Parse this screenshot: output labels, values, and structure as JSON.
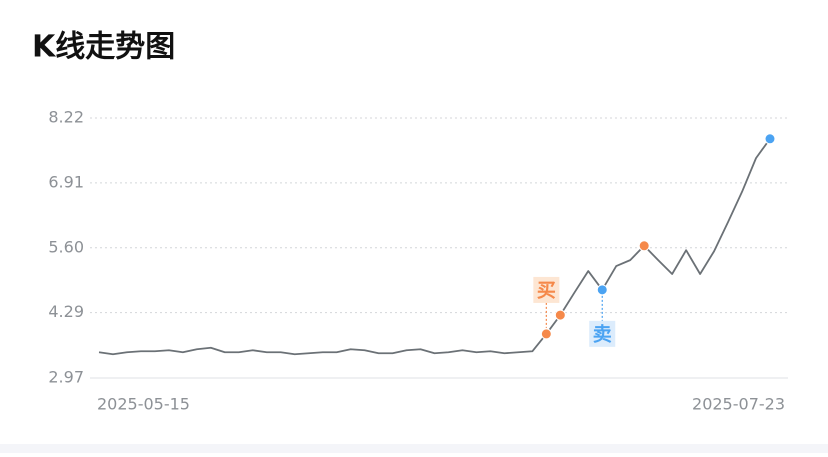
{
  "chart_data": {
    "type": "line",
    "title": "K线走势图",
    "categories": [
      "2025-05-15",
      null,
      null,
      null,
      null,
      null,
      null,
      null,
      null,
      null,
      null,
      null,
      null,
      null,
      null,
      null,
      null,
      null,
      null,
      null,
      null,
      null,
      null,
      null,
      null,
      null,
      null,
      null,
      null,
      null,
      null,
      null,
      null,
      null,
      null,
      null,
      null,
      null,
      null,
      null,
      null,
      null,
      null,
      null,
      null,
      null,
      null,
      null,
      "2025-07-23"
    ],
    "series": [
      {
        "color": "#6b7176",
        "values": [
          3.49,
          3.45,
          3.49,
          3.51,
          3.51,
          3.53,
          3.49,
          3.55,
          3.58,
          3.49,
          3.49,
          3.53,
          3.49,
          3.49,
          3.45,
          3.47,
          3.49,
          3.49,
          3.55,
          3.53,
          3.47,
          3.47,
          3.53,
          3.55,
          3.47,
          3.49,
          3.53,
          3.49,
          3.51,
          3.47,
          3.49,
          3.51,
          3.86,
          4.24,
          4.69,
          5.13,
          4.75,
          5.23,
          5.35,
          5.64,
          5.35,
          5.07,
          5.55,
          5.07,
          5.53,
          6.12,
          6.73,
          7.41,
          7.8
        ]
      },
      {
        "color": "#f5894a",
        "values": [
          null,
          null,
          null,
          null,
          null,
          null,
          null,
          null,
          null,
          null,
          null,
          null,
          null,
          null,
          null,
          null,
          null,
          null,
          null,
          null,
          null,
          null,
          null,
          null,
          null,
          null,
          null,
          null,
          null,
          null,
          null,
          null,
          3.86,
          4.24,
          null,
          null,
          null,
          null,
          null,
          5.64,
          null,
          null,
          null,
          null,
          null,
          null,
          null,
          null,
          null
        ]
      },
      {
        "color": "#4ba3f2",
        "values": [
          null,
          null,
          null,
          null,
          null,
          null,
          null,
          null,
          null,
          null,
          null,
          null,
          null,
          null,
          null,
          null,
          null,
          null,
          null,
          null,
          null,
          null,
          null,
          null,
          null,
          null,
          null,
          null,
          null,
          null,
          null,
          null,
          null,
          null,
          null,
          null,
          4.75,
          null,
          null,
          null,
          null,
          null,
          null,
          null,
          null,
          null,
          null,
          null,
          7.8
        ]
      }
    ],
    "annotations": [
      {
        "text": "买",
        "series": 1,
        "point": 32,
        "side": "above",
        "color": "#f5894a",
        "background": "#fde6d3"
      },
      {
        "text": "卖",
        "series": 2,
        "point": 36,
        "side": "below",
        "color": "#4ba3f2",
        "background": "#dcecfc"
      }
    ],
    "ylim": [
      2.97,
      8.22
    ],
    "yticks": [
      {
        "value": 8.22,
        "label": "8.22"
      },
      {
        "value": 6.91,
        "label": "6.91"
      },
      {
        "value": 5.6,
        "label": "5.60"
      },
      {
        "value": 4.29,
        "label": "4.29"
      },
      {
        "value": 2.97,
        "label": "2.97"
      }
    ],
    "grid": true
  }
}
